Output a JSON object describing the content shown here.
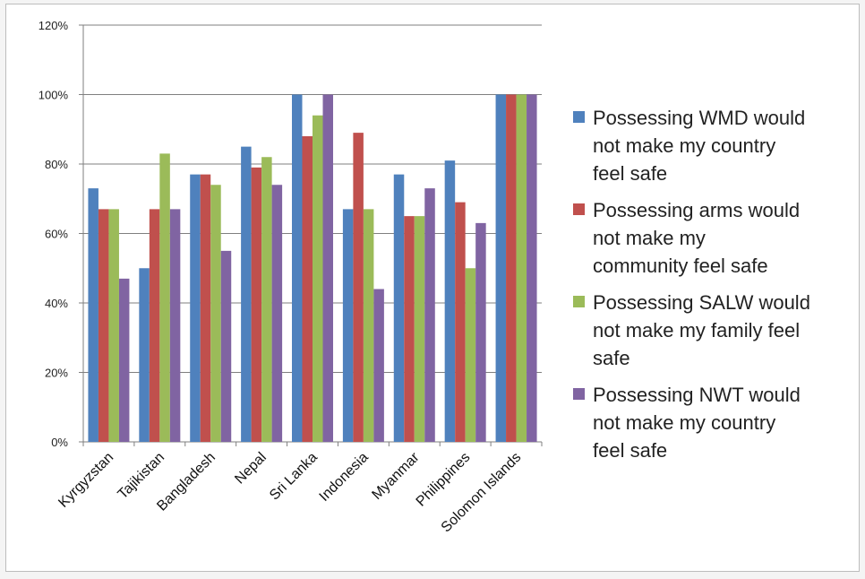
{
  "chart_data": {
    "type": "bar",
    "categories": [
      "Kyrgyzstan",
      "Tajikistan",
      "Bangladesh",
      "Nepal",
      "Sri Lanka",
      "Indonesia",
      "Myanmar",
      "Philippines",
      "Solomon Islands"
    ],
    "series": [
      {
        "name": "Possessing WMD would not make my country feel safe",
        "legend_lines": [
          "Possessing WMD would",
          "not make my country",
          "feel safe"
        ],
        "color": "#4f81bd",
        "values": [
          73,
          50,
          77,
          85,
          100,
          67,
          77,
          81,
          100
        ]
      },
      {
        "name": "Possessing arms would not make my community feel safe",
        "legend_lines": [
          "Possessing arms would",
          "not make my",
          "community feel safe"
        ],
        "color": "#c0504d",
        "values": [
          67,
          67,
          77,
          79,
          88,
          89,
          65,
          69,
          100
        ]
      },
      {
        "name": "Possessing SALW would not make my family feel safe",
        "legend_lines": [
          "Possessing SALW would",
          "not make my family feel",
          "safe"
        ],
        "color": "#9bbb59",
        "values": [
          67,
          83,
          74,
          82,
          94,
          67,
          65,
          50,
          100
        ]
      },
      {
        "name": "Possessing NWT would not make my country feel safe",
        "legend_lines": [
          "Possessing NWT would",
          "not make my country",
          "feel safe"
        ],
        "color": "#8064a2",
        "values": [
          47,
          67,
          55,
          74,
          100,
          44,
          73,
          63,
          100
        ]
      }
    ],
    "y_ticks": [
      "0%",
      "20%",
      "40%",
      "60%",
      "80%",
      "100%",
      "120%"
    ],
    "ylim": [
      0,
      120
    ],
    "grid": true,
    "legend_position": "right"
  }
}
